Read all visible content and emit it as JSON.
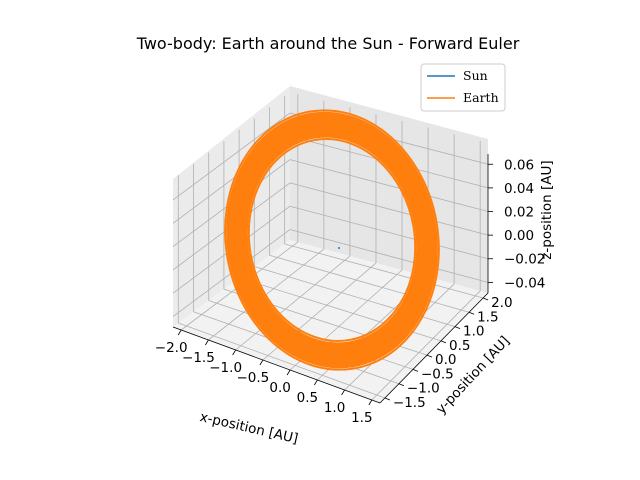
{
  "chart_data": {
    "type": "line",
    "projection": "3d",
    "title": "Two-body: Earth around the Sun - Forward Euler",
    "xlabel": "x-position [AU]",
    "ylabel": "y-position [AU]",
    "zlabel": "z-position [AU]",
    "xlim": [
      -2.2,
      2.0
    ],
    "ylim": [
      -2.0,
      2.3
    ],
    "zlim": [
      -0.055,
      0.065
    ],
    "x_ticks": [
      "−2.0",
      "−1.5",
      "−1.0",
      "−0.5",
      "0.0",
      "0.5",
      "1.0",
      "1.5"
    ],
    "y_ticks": [
      "−1.5",
      "−1.0",
      "−0.5",
      "0.0",
      "0.5",
      "1.0",
      "1.5",
      "2.0"
    ],
    "z_ticks": [
      "−0.04",
      "−0.02",
      "0.00",
      "0.02",
      "0.04",
      "0.06"
    ],
    "grid": true,
    "legend_position": "top-right",
    "series": [
      {
        "name": "Sun",
        "color": "#1f77b4",
        "description_values": {
          "x": [
            0.0
          ],
          "y": [
            0.0
          ],
          "z": [
            0.0
          ]
        }
      },
      {
        "name": "Earth",
        "color": "#ff7f0e",
        "orbit": {
          "center": [
            0.0,
            0.0,
            0.0
          ],
          "inner_radius": 1.0,
          "outer_radius": 1.55,
          "z": 0.0
        }
      }
    ]
  }
}
